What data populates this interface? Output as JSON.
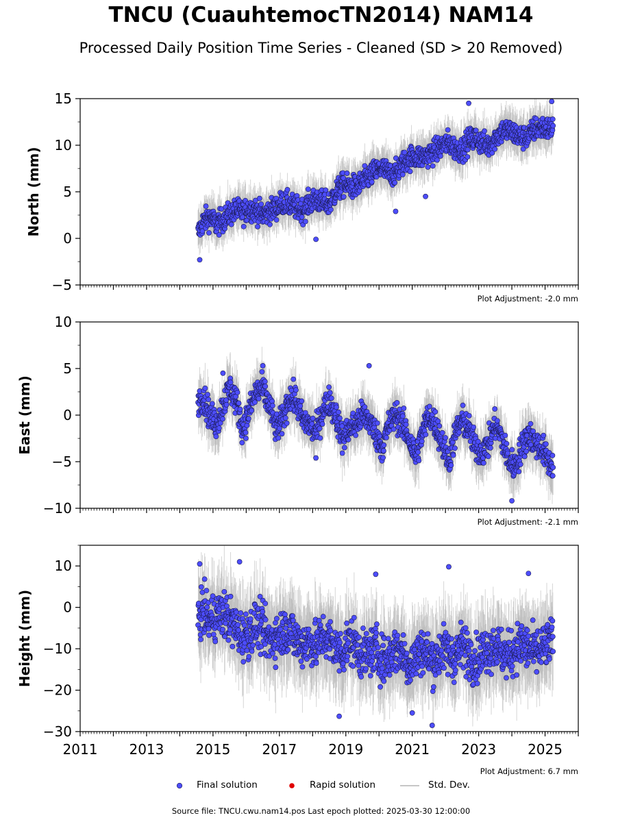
{
  "title": "TNCU (CuauhtemocTN2014) NAM14",
  "subtitle": "Processed Daily Position Time Series - Cleaned (SD > 20 Removed)",
  "footer": "Source file: TNCU.cwu.nam14.pos  Last epoch plotted: 2025-03-30 12:00:00",
  "legend": {
    "final": "Final solution",
    "rapid": "Rapid solution",
    "std": "Std. Dev."
  },
  "colors": {
    "final_fill": "#4d4dff",
    "final_edge": "#1a1a4d",
    "rapid": "#e00000",
    "std": "#b3b3b3"
  },
  "chart_data": [
    {
      "type": "scatter",
      "ylabel": "North (mm)",
      "adjustment": "Plot Adjustment: -2.0 mm",
      "xlim": [
        2011.0,
        2026.0
      ],
      "ylim": [
        -5,
        15
      ],
      "yticks": [
        -5,
        0,
        5,
        10,
        15
      ],
      "ytick_labels": [
        "−5",
        "0",
        "5",
        "10",
        "15"
      ],
      "xticks": [
        2011,
        2013,
        2015,
        2017,
        2019,
        2021,
        2023,
        2025
      ],
      "xtick_labels": [],
      "series": [
        {
          "name": "Final solution",
          "x": [
            2014.55,
            2014.7,
            2014.9,
            2015.1,
            2015.3,
            2015.5,
            2015.7,
            2015.9,
            2016.1,
            2016.3,
            2016.5,
            2016.7,
            2016.9,
            2017.1,
            2017.3,
            2017.5,
            2017.7,
            2017.9,
            2018.1,
            2018.3,
            2018.5,
            2018.7,
            2018.9,
            2019.1,
            2019.3,
            2019.5,
            2019.7,
            2019.9,
            2020.1,
            2020.3,
            2020.5,
            2020.7,
            2020.9,
            2021.1,
            2021.3,
            2021.5,
            2021.7,
            2021.9,
            2022.1,
            2022.3,
            2022.5,
            2022.7,
            2022.9,
            2023.1,
            2023.3,
            2023.5,
            2023.7,
            2023.9,
            2024.1,
            2024.3,
            2024.5,
            2024.7,
            2024.9,
            2025.1,
            2025.24
          ],
          "y": [
            0.5,
            1.8,
            2.3,
            1.5,
            2.0,
            2.6,
            3.0,
            2.8,
            3.2,
            3.0,
            2.5,
            2.9,
            3.3,
            3.9,
            3.6,
            3.3,
            3.0,
            3.8,
            4.2,
            3.8,
            3.7,
            5.0,
            5.7,
            5.6,
            5.5,
            6.0,
            6.7,
            7.2,
            7.5,
            6.9,
            7.0,
            8.0,
            8.6,
            8.8,
            8.7,
            9.0,
            9.4,
            10.0,
            10.3,
            9.6,
            9.5,
            10.5,
            10.8,
            10.2,
            10.0,
            10.8,
            11.5,
            11.6,
            11.2,
            10.8,
            11.0,
            11.8,
            11.9,
            11.7,
            12.0
          ]
        }
      ],
      "outliers": [
        {
          "x": 2014.6,
          "y": -2.3
        },
        {
          "x": 2018.1,
          "y": -0.1
        },
        {
          "x": 2022.7,
          "y": 14.5
        },
        {
          "x": 2025.2,
          "y": 14.7
        },
        {
          "x": 2021.4,
          "y": 4.5
        },
        {
          "x": 2020.5,
          "y": 2.9
        }
      ]
    },
    {
      "type": "scatter",
      "ylabel": "East (mm)",
      "adjustment": "Plot Adjustment: -2.1 mm",
      "xlim": [
        2011.0,
        2026.0
      ],
      "ylim": [
        -10,
        10
      ],
      "yticks": [
        -10,
        -5,
        0,
        5,
        10
      ],
      "ytick_labels": [
        "−10",
        "−5",
        "0",
        "5",
        "10"
      ],
      "xticks": [
        2011,
        2013,
        2015,
        2017,
        2019,
        2021,
        2023,
        2025
      ],
      "xtick_labels": [],
      "series": [
        {
          "name": "Final solution",
          "x": [
            2014.55,
            2014.7,
            2014.9,
            2015.1,
            2015.3,
            2015.5,
            2015.7,
            2015.9,
            2016.1,
            2016.3,
            2016.5,
            2016.7,
            2016.9,
            2017.1,
            2017.3,
            2017.5,
            2017.7,
            2017.9,
            2018.1,
            2018.3,
            2018.5,
            2018.7,
            2018.9,
            2019.1,
            2019.3,
            2019.5,
            2019.7,
            2019.9,
            2020.1,
            2020.3,
            2020.5,
            2020.7,
            2020.9,
            2021.1,
            2021.3,
            2021.5,
            2021.7,
            2021.9,
            2022.1,
            2022.3,
            2022.5,
            2022.7,
            2022.9,
            2023.1,
            2023.3,
            2023.5,
            2023.7,
            2023.9,
            2024.1,
            2024.3,
            2024.5,
            2024.7,
            2024.9,
            2025.1,
            2025.24
          ],
          "y": [
            1.5,
            2.0,
            0.0,
            -1.0,
            1.0,
            3.0,
            1.5,
            -1.5,
            0.5,
            2.5,
            2.8,
            1.0,
            -1.5,
            -0.5,
            2.0,
            1.5,
            -0.5,
            -1.0,
            -2.0,
            0.5,
            1.5,
            0.0,
            -2.5,
            -1.5,
            -1.0,
            0.0,
            -0.5,
            -2.0,
            -3.5,
            -1.0,
            0.0,
            -1.0,
            -2.5,
            -4.5,
            -2.0,
            0.0,
            -1.0,
            -3.0,
            -5.0,
            -2.0,
            -0.5,
            -1.5,
            -3.5,
            -4.0,
            -3.0,
            -1.0,
            -2.5,
            -5.0,
            -5.5,
            -3.5,
            -2.0,
            -3.0,
            -3.5,
            -5.0,
            -5.5
          ]
        }
      ],
      "outliers": [
        {
          "x": 2015.3,
          "y": 4.5
        },
        {
          "x": 2016.5,
          "y": 5.3
        },
        {
          "x": 2019.7,
          "y": 5.3
        },
        {
          "x": 2024.0,
          "y": -9.2
        },
        {
          "x": 2018.1,
          "y": -4.6
        }
      ]
    },
    {
      "type": "scatter",
      "ylabel": "Height (mm)",
      "adjustment": "Plot Adjustment: 6.7 mm",
      "xlim": [
        2011.0,
        2026.0
      ],
      "ylim": [
        -30,
        15
      ],
      "yticks": [
        -30,
        -20,
        -10,
        0,
        10
      ],
      "ytick_labels": [
        "−30",
        "−20",
        "−10",
        "0",
        "10"
      ],
      "xticks": [
        2011,
        2013,
        2015,
        2017,
        2019,
        2021,
        2023,
        2025
      ],
      "xtick_labels": [
        "2011",
        "2013",
        "2015",
        "2017",
        "2019",
        "2021",
        "2023",
        "2025"
      ],
      "series": [
        {
          "name": "Final solution",
          "x": [
            2014.55,
            2014.7,
            2014.9,
            2015.1,
            2015.3,
            2015.5,
            2015.7,
            2015.9,
            2016.1,
            2016.3,
            2016.5,
            2016.7,
            2016.9,
            2017.1,
            2017.3,
            2017.5,
            2017.7,
            2017.9,
            2018.1,
            2018.3,
            2018.5,
            2018.7,
            2018.9,
            2019.1,
            2019.3,
            2019.5,
            2019.7,
            2019.9,
            2020.1,
            2020.3,
            2020.5,
            2020.7,
            2020.9,
            2021.1,
            2021.3,
            2021.5,
            2021.7,
            2021.9,
            2022.1,
            2022.3,
            2022.5,
            2022.7,
            2022.9,
            2023.1,
            2023.3,
            2023.5,
            2023.7,
            2023.9,
            2024.1,
            2024.3,
            2024.5,
            2024.7,
            2024.9,
            2025.1,
            2025.24
          ],
          "y": [
            -2.0,
            -1.0,
            -3.0,
            -2.0,
            -1.5,
            -3.0,
            -5.0,
            -7.0,
            -6.0,
            -4.0,
            -5.5,
            -8.0,
            -7.0,
            -6.0,
            -5.0,
            -8.0,
            -9.0,
            -8.0,
            -9.5,
            -7.0,
            -8.0,
            -10.0,
            -11.0,
            -8.0,
            -9.0,
            -12.0,
            -11.0,
            -10.0,
            -13.0,
            -12.0,
            -10.0,
            -11.0,
            -14.0,
            -12.0,
            -10.0,
            -12.0,
            -13.0,
            -10.0,
            -11.0,
            -12.0,
            -9.0,
            -11.0,
            -13.0,
            -11.0,
            -10.0,
            -9.0,
            -11.0,
            -12.0,
            -10.0,
            -9.0,
            -10.0,
            -11.0,
            -10.0,
            -9.0,
            -8.0
          ]
        }
      ],
      "outliers": [
        {
          "x": 2014.6,
          "y": 10.5
        },
        {
          "x": 2015.8,
          "y": 11.0
        },
        {
          "x": 2021.6,
          "y": -28.5
        },
        {
          "x": 2018.8,
          "y": -26.3
        },
        {
          "x": 2021.0,
          "y": -25.5
        },
        {
          "x": 2019.9,
          "y": 8.0
        },
        {
          "x": 2022.1,
          "y": 9.8
        },
        {
          "x": 2024.5,
          "y": 8.2
        }
      ]
    }
  ]
}
